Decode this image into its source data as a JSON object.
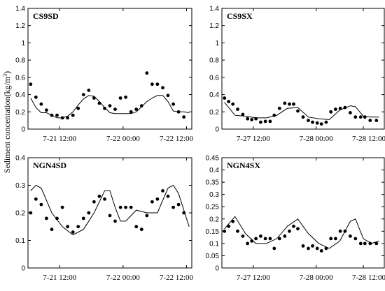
{
  "ylabel_text": "Sediment concentation(kg/m",
  "ylabel_sup": "3",
  "ylabel_close": ")",
  "chart_data": [
    {
      "type": "scatter",
      "title": "CS9SD",
      "ylim": [
        0,
        1.4
      ],
      "yticks": [
        "0",
        "0.2",
        "0.4",
        "0.6",
        "0.8",
        "1",
        "1.2",
        "1.4"
      ],
      "xlim": [
        0,
        31
      ],
      "xticks": [
        {
          "x": 6,
          "label": "7-21 12:00"
        },
        {
          "x": 18,
          "label": "7-22 00:00"
        },
        {
          "x": 30,
          "label": "7-22 12:00"
        }
      ],
      "series": [
        {
          "kind": "points",
          "x": [
            0.5,
            1.5,
            2.5,
            3.5,
            4.5,
            5.5,
            6.5,
            7.5,
            8.5,
            9.5,
            10.5,
            11.5,
            12.5,
            13.5,
            14.5,
            15.5,
            16.5,
            17.5,
            18.5,
            19.5,
            20.5,
            21.5,
            22.5,
            23.5,
            24.5,
            25.5,
            26.5,
            27.5,
            28.5,
            29.5
          ],
          "y": [
            0.52,
            0.37,
            0.29,
            0.22,
            0.16,
            0.16,
            0.13,
            0.13,
            0.16,
            0.24,
            0.4,
            0.45,
            0.36,
            0.3,
            0.24,
            0.27,
            0.23,
            0.36,
            0.37,
            0.2,
            0.23,
            0.27,
            0.65,
            0.52,
            0.52,
            0.48,
            0.39,
            0.29,
            0.2,
            0.14
          ]
        },
        {
          "kind": "line",
          "x": [
            0.5,
            1.5,
            2.5,
            3.5,
            4.5,
            5.5,
            6.5,
            7.5,
            8.5,
            9.5,
            10.5,
            11.5,
            12.5,
            13.5,
            14.5,
            15.5,
            16.5,
            17.5,
            18.5,
            19.5,
            20.5,
            21.5,
            22.5,
            23.5,
            24.5,
            25.5,
            26.5,
            27.5,
            28.5,
            29.5,
            30.5
          ],
          "y": [
            0.36,
            0.25,
            0.19,
            0.19,
            0.16,
            0.13,
            0.13,
            0.15,
            0.2,
            0.28,
            0.35,
            0.39,
            0.38,
            0.32,
            0.25,
            0.19,
            0.18,
            0.18,
            0.18,
            0.18,
            0.2,
            0.26,
            0.32,
            0.36,
            0.39,
            0.39,
            0.32,
            0.21,
            0.2,
            0.2,
            0.19
          ]
        }
      ]
    },
    {
      "type": "scatter",
      "title": "CS9SX",
      "ylim": [
        0,
        1.4
      ],
      "yticks": [
        "0",
        "0.2",
        "0.4",
        "0.6",
        "0.8",
        "1",
        "1.2",
        "1.4"
      ],
      "xlim": [
        0,
        31
      ],
      "xticks": [
        {
          "x": 6,
          "label": "7-27 12:00"
        },
        {
          "x": 18,
          "label": "7-28 00:00"
        },
        {
          "x": 27,
          "label": "7-28 12:00"
        }
      ],
      "series": [
        {
          "kind": "points",
          "x": [
            0.5,
            1.3,
            2.1,
            3.0,
            4.0,
            4.9,
            5.7,
            6.5,
            7.4,
            8.3,
            9.2,
            10.0,
            11.0,
            12.0,
            12.9,
            13.7,
            14.5,
            15.5,
            16.5,
            17.3,
            18.2,
            19.0,
            19.9,
            20.8,
            21.7,
            22.6,
            23.5,
            24.5,
            25.5,
            26.5,
            27.3,
            28.3,
            29.5
          ],
          "y": [
            0.36,
            0.32,
            0.29,
            0.23,
            0.17,
            0.12,
            0.11,
            0.12,
            0.08,
            0.09,
            0.09,
            0.16,
            0.24,
            0.3,
            0.29,
            0.29,
            0.21,
            0.14,
            0.1,
            0.08,
            0.07,
            0.06,
            0.08,
            0.2,
            0.23,
            0.24,
            0.25,
            0.19,
            0.14,
            0.14,
            0.14,
            0.1,
            0.1
          ]
        },
        {
          "kind": "line",
          "x": [
            0.5,
            2.5,
            4.5,
            6.5,
            8.5,
            10.5,
            12.5,
            14.5,
            16.5,
            18.5,
            20.5,
            22.5,
            24.5,
            25.5,
            27.0,
            28.5,
            30.0
          ],
          "y": [
            0.31,
            0.16,
            0.15,
            0.13,
            0.13,
            0.16,
            0.24,
            0.25,
            0.14,
            0.12,
            0.11,
            0.22,
            0.27,
            0.26,
            0.15,
            0.14,
            0.14
          ]
        }
      ]
    },
    {
      "type": "scatter",
      "title": "NGN4SD",
      "ylim": [
        0,
        0.4
      ],
      "yticks": [
        "0",
        "0.1",
        "0.2",
        "0.3",
        "0.4"
      ],
      "xlim": [
        0,
        31
      ],
      "xticks": [
        {
          "x": 6,
          "label": "7-21 12:00"
        },
        {
          "x": 18,
          "label": "7-22 00:00"
        },
        {
          "x": 30,
          "label": "7-22 12:00"
        }
      ],
      "series": [
        {
          "kind": "points",
          "x": [
            0.5,
            1.5,
            2.5,
            3.5,
            4.5,
            5.5,
            6.5,
            7.5,
            8.5,
            9.5,
            10.5,
            11.5,
            12.5,
            13.5,
            14.5,
            15.5,
            16.5,
            17.5,
            18.5,
            19.5,
            20.5,
            21.5,
            22.5,
            23.5,
            24.5,
            25.5,
            26.5,
            27.5,
            28.5,
            29.5
          ],
          "y": [
            0.2,
            0.25,
            0.23,
            0.18,
            0.14,
            0.18,
            0.22,
            0.15,
            0.13,
            0.15,
            0.18,
            0.2,
            0.24,
            0.26,
            0.25,
            0.19,
            0.17,
            0.22,
            0.22,
            0.22,
            0.15,
            0.14,
            0.19,
            0.24,
            0.25,
            0.28,
            0.26,
            0.22,
            0.23,
            0.2
          ]
        },
        {
          "kind": "line",
          "x": [
            0.5,
            1.5,
            2.5,
            4.5,
            6.5,
            8.5,
            10.5,
            12.5,
            14.5,
            15.5,
            16.5,
            17.5,
            18.5,
            20.5,
            22.5,
            24.5,
            26.5,
            27.5,
            28.5,
            30.5
          ],
          "y": [
            0.28,
            0.3,
            0.29,
            0.2,
            0.15,
            0.12,
            0.14,
            0.2,
            0.28,
            0.28,
            0.22,
            0.17,
            0.17,
            0.21,
            0.2,
            0.2,
            0.29,
            0.3,
            0.27,
            0.15
          ]
        }
      ]
    },
    {
      "type": "scatter",
      "title": "NGN4SX",
      "ylim": [
        0,
        0.45
      ],
      "yticks": [
        "0",
        "0.05",
        "0.1",
        "0.15",
        "0.2",
        "0.25",
        "0.3",
        "0.35",
        "0.4",
        "0.45"
      ],
      "xlim": [
        0,
        31
      ],
      "xticks": [
        {
          "x": 6,
          "label": "7-27 12:00"
        },
        {
          "x": 18,
          "label": "7-28 00:00"
        },
        {
          "x": 27,
          "label": "7-28 12:00"
        }
      ],
      "series": [
        {
          "kind": "points",
          "x": [
            0.5,
            1.3,
            2.1,
            3.0,
            4.0,
            4.9,
            5.7,
            6.5,
            7.4,
            8.3,
            9.2,
            10.0,
            11.0,
            12.0,
            12.9,
            13.7,
            14.5,
            15.5,
            16.5,
            17.3,
            18.2,
            19.0,
            19.9,
            20.8,
            21.7,
            22.6,
            23.5,
            24.5,
            25.5,
            26.5,
            27.3,
            28.3,
            29.5
          ],
          "y": [
            0.15,
            0.17,
            0.19,
            0.15,
            0.13,
            0.1,
            0.11,
            0.12,
            0.13,
            0.12,
            0.12,
            0.08,
            0.12,
            0.13,
            0.15,
            0.17,
            0.16,
            0.09,
            0.08,
            0.09,
            0.08,
            0.07,
            0.08,
            0.12,
            0.12,
            0.15,
            0.15,
            0.13,
            0.12,
            0.1,
            0.1,
            0.1,
            0.1
          ]
        },
        {
          "kind": "line",
          "x": [
            0.5,
            2.5,
            4.5,
            6.5,
            8.5,
            10.5,
            12.5,
            14.5,
            16.5,
            18.5,
            20.5,
            22.5,
            24.5,
            25.5,
            27.0,
            28.5,
            30.0
          ],
          "y": [
            0.16,
            0.21,
            0.14,
            0.1,
            0.1,
            0.12,
            0.17,
            0.2,
            0.14,
            0.1,
            0.08,
            0.11,
            0.19,
            0.2,
            0.12,
            0.1,
            0.11
          ]
        }
      ]
    }
  ]
}
